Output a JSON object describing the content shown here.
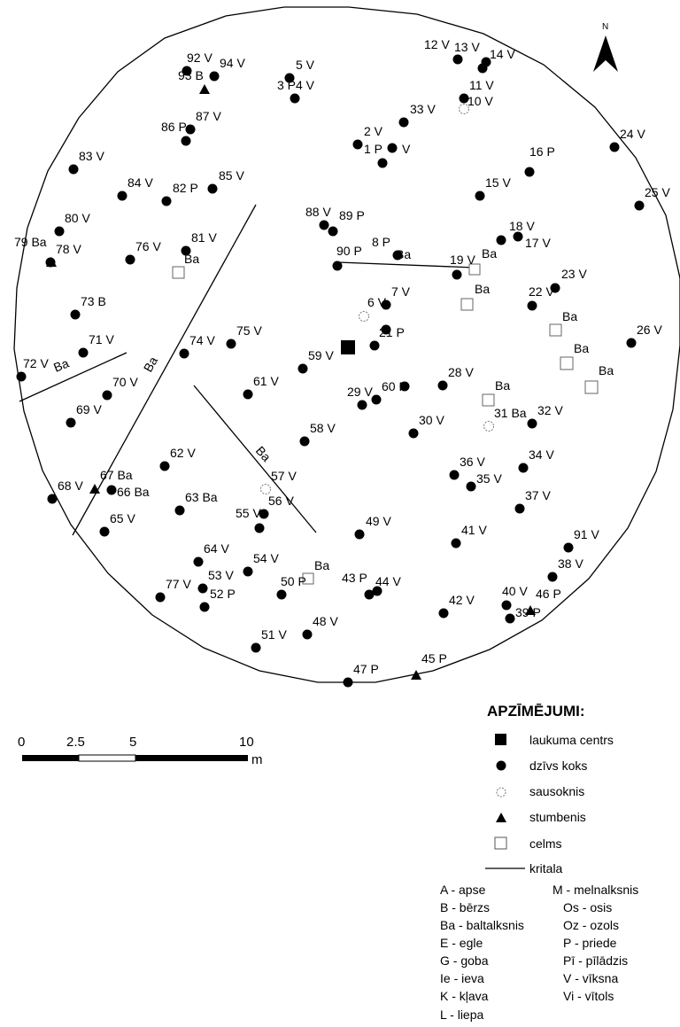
{
  "north_label": "N",
  "tree_labels": [
    "92 V",
    "94 V",
    "93 B",
    "5 V",
    "3 P",
    "4 V",
    "12 V",
    "13 V",
    "14 V",
    "11 V",
    "10 V",
    "87 V",
    "86 P",
    "33 V",
    "2 V",
    "1 P",
    "V",
    "24 V",
    "83 V",
    "16 P",
    "15 V",
    "25 V",
    "84 V",
    "82 P",
    "85 V",
    "88 V",
    "89 P",
    "80 V",
    "81 V",
    "79 Ba",
    "78 V",
    "76 V",
    "Ba",
    "90 P",
    "8 P",
    "Ba",
    "19 V",
    "Ba",
    "18 V",
    "17 V",
    "23 V",
    "22 V",
    "Ba",
    "Ba",
    "7 V",
    "6 V",
    "73 B",
    "21 P",
    "Ba",
    "26 V",
    "74 V",
    "75 V",
    "71 V",
    "59 V",
    "Ba",
    "72 V",
    "Ba",
    "28 V",
    "Ba",
    "70 V",
    "61 V",
    "60 P",
    "29 V",
    "69 V",
    "31 Ba",
    "32 V",
    "30 V",
    "58 V",
    "62 V",
    "34 V",
    "36 V",
    "35 V",
    "Ba",
    "57 V",
    "67 Ba",
    "68 V",
    "66 Ba",
    "63 Ba",
    "56 V",
    "37 V",
    "55 V",
    "65 V",
    "49 V",
    "41 V",
    "91 V",
    "64 V",
    "54 V",
    "Ba",
    "38 V",
    "53 V",
    "77 V",
    "50 P",
    "43 P",
    "44 V",
    "40 V",
    "46 P",
    "52 P",
    "42 V",
    "39 P",
    "48 V",
    "51 V",
    "45 P",
    "47 P"
  ],
  "scale": {
    "ticks": [
      "0",
      "2.5",
      "5",
      "10"
    ],
    "unit": "m"
  },
  "legend": {
    "title": "APZĪMĒJUMI:",
    "items": [
      {
        "label": "laukuma centrs",
        "symbol": "filled-square"
      },
      {
        "label": "dzīvs koks",
        "symbol": "filled-circle"
      },
      {
        "label": "sausoknis",
        "symbol": "dashed-circle"
      },
      {
        "label": "stumbenis",
        "symbol": "triangle"
      },
      {
        "label": "celms",
        "symbol": "open-square"
      },
      {
        "label": "kritala",
        "symbol": "line"
      }
    ],
    "abbreviations_left": [
      "A - apse",
      "B - bērzs",
      "Ba - baltalksnis",
      "E - egle",
      "G - goba",
      "Ie - ieva",
      "K - kļava",
      "L - liepa"
    ],
    "abbreviations_right": [
      "M - melnalksnis",
      "Os - osis",
      "Oz - ozols",
      "P - priede",
      "Pī - pīlādzis",
      "V - vīksna",
      "Vi - vītols"
    ]
  }
}
